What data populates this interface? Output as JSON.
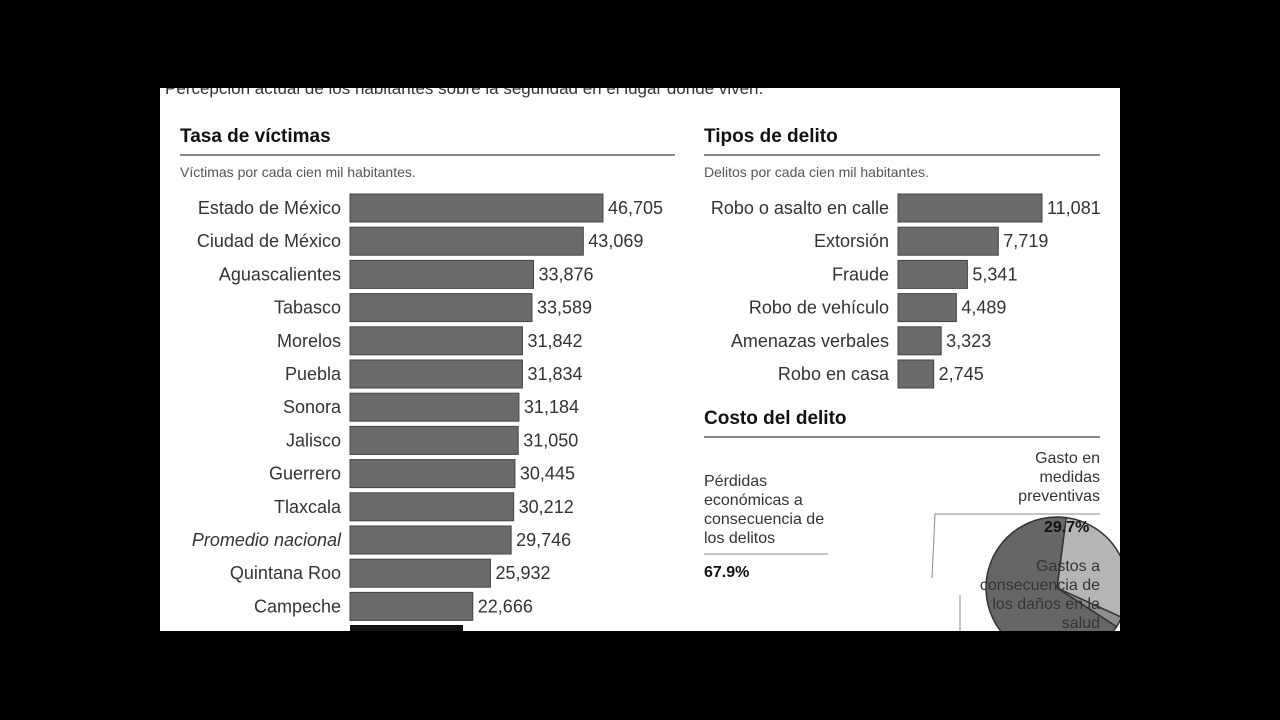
{
  "header": {
    "top_text": "Percepción actual de los habitantes sobre la seguridad en el lugar donde viven."
  },
  "colors": {
    "bar": "#6b6b6b",
    "bar_stroke": "#444444",
    "pie_dark": "#666666",
    "pie_light": "#b5b5b5",
    "pie_mid": "#8f8f8f"
  },
  "sections": {
    "victims": {
      "title": "Tasa de víctimas",
      "subtitle": "Víctimas por cada cien mil habitantes."
    },
    "crimes": {
      "title": "Tipos de delito",
      "subtitle": "Delitos por cada cien mil habitantes."
    },
    "cost": {
      "title": "Costo del delito",
      "slices": [
        {
          "label": "Pérdidas económicas a consecuencia de los delitos",
          "pct": "67.9%"
        },
        {
          "label": "Gasto en medidas preventivas",
          "pct": "29.7%"
        },
        {
          "label": "Gastos a consecuencia de los daños en la salud",
          "pct": ""
        }
      ]
    }
  },
  "chart_data": [
    {
      "type": "bar",
      "orientation": "horizontal",
      "title": "Tasa de víctimas",
      "subtitle": "Víctimas por cada cien mil habitantes.",
      "categories": [
        "Estado de México",
        "Ciudad de México",
        "Aguascalientes",
        "Tabasco",
        "Morelos",
        "Puebla",
        "Sonora",
        "Jalisco",
        "Guerrero",
        "Tlaxcala",
        "Promedio nacional",
        "Quintana Roo",
        "Campeche"
      ],
      "values": [
        46705,
        43069,
        33876,
        33589,
        31842,
        31834,
        31184,
        31050,
        30445,
        30212,
        29746,
        25932,
        22666
      ],
      "value_labels": [
        "46,705",
        "43,069",
        "33,876",
        "33,589",
        "31,842",
        "31,834",
        "31,184",
        "31,050",
        "30,445",
        "30,212",
        "29,746",
        "25,932",
        "22,666"
      ],
      "italic_categories": [
        "Promedio nacional"
      ]
    },
    {
      "type": "bar",
      "orientation": "horizontal",
      "title": "Tipos de delito",
      "subtitle": "Delitos por cada cien mil habitantes.",
      "categories": [
        "Robo o asalto en calle",
        "Extorsión",
        "Fraude",
        "Robo de vehículo",
        "Amenazas verbales",
        "Robo en casa"
      ],
      "values": [
        11081,
        7719,
        5341,
        4489,
        3323,
        2745
      ],
      "value_labels": [
        "11,081",
        "7,719",
        "5,341",
        "4,489",
        "3,323",
        "2,745"
      ]
    },
    {
      "type": "pie",
      "title": "Costo del delito",
      "labels": [
        "Pérdidas económicas a consecuencia de los delitos",
        "Gasto en medidas preventivas",
        "Gastos a consecuencia de los daños en la salud"
      ],
      "values": [
        67.9,
        29.7,
        2.4
      ]
    }
  ]
}
